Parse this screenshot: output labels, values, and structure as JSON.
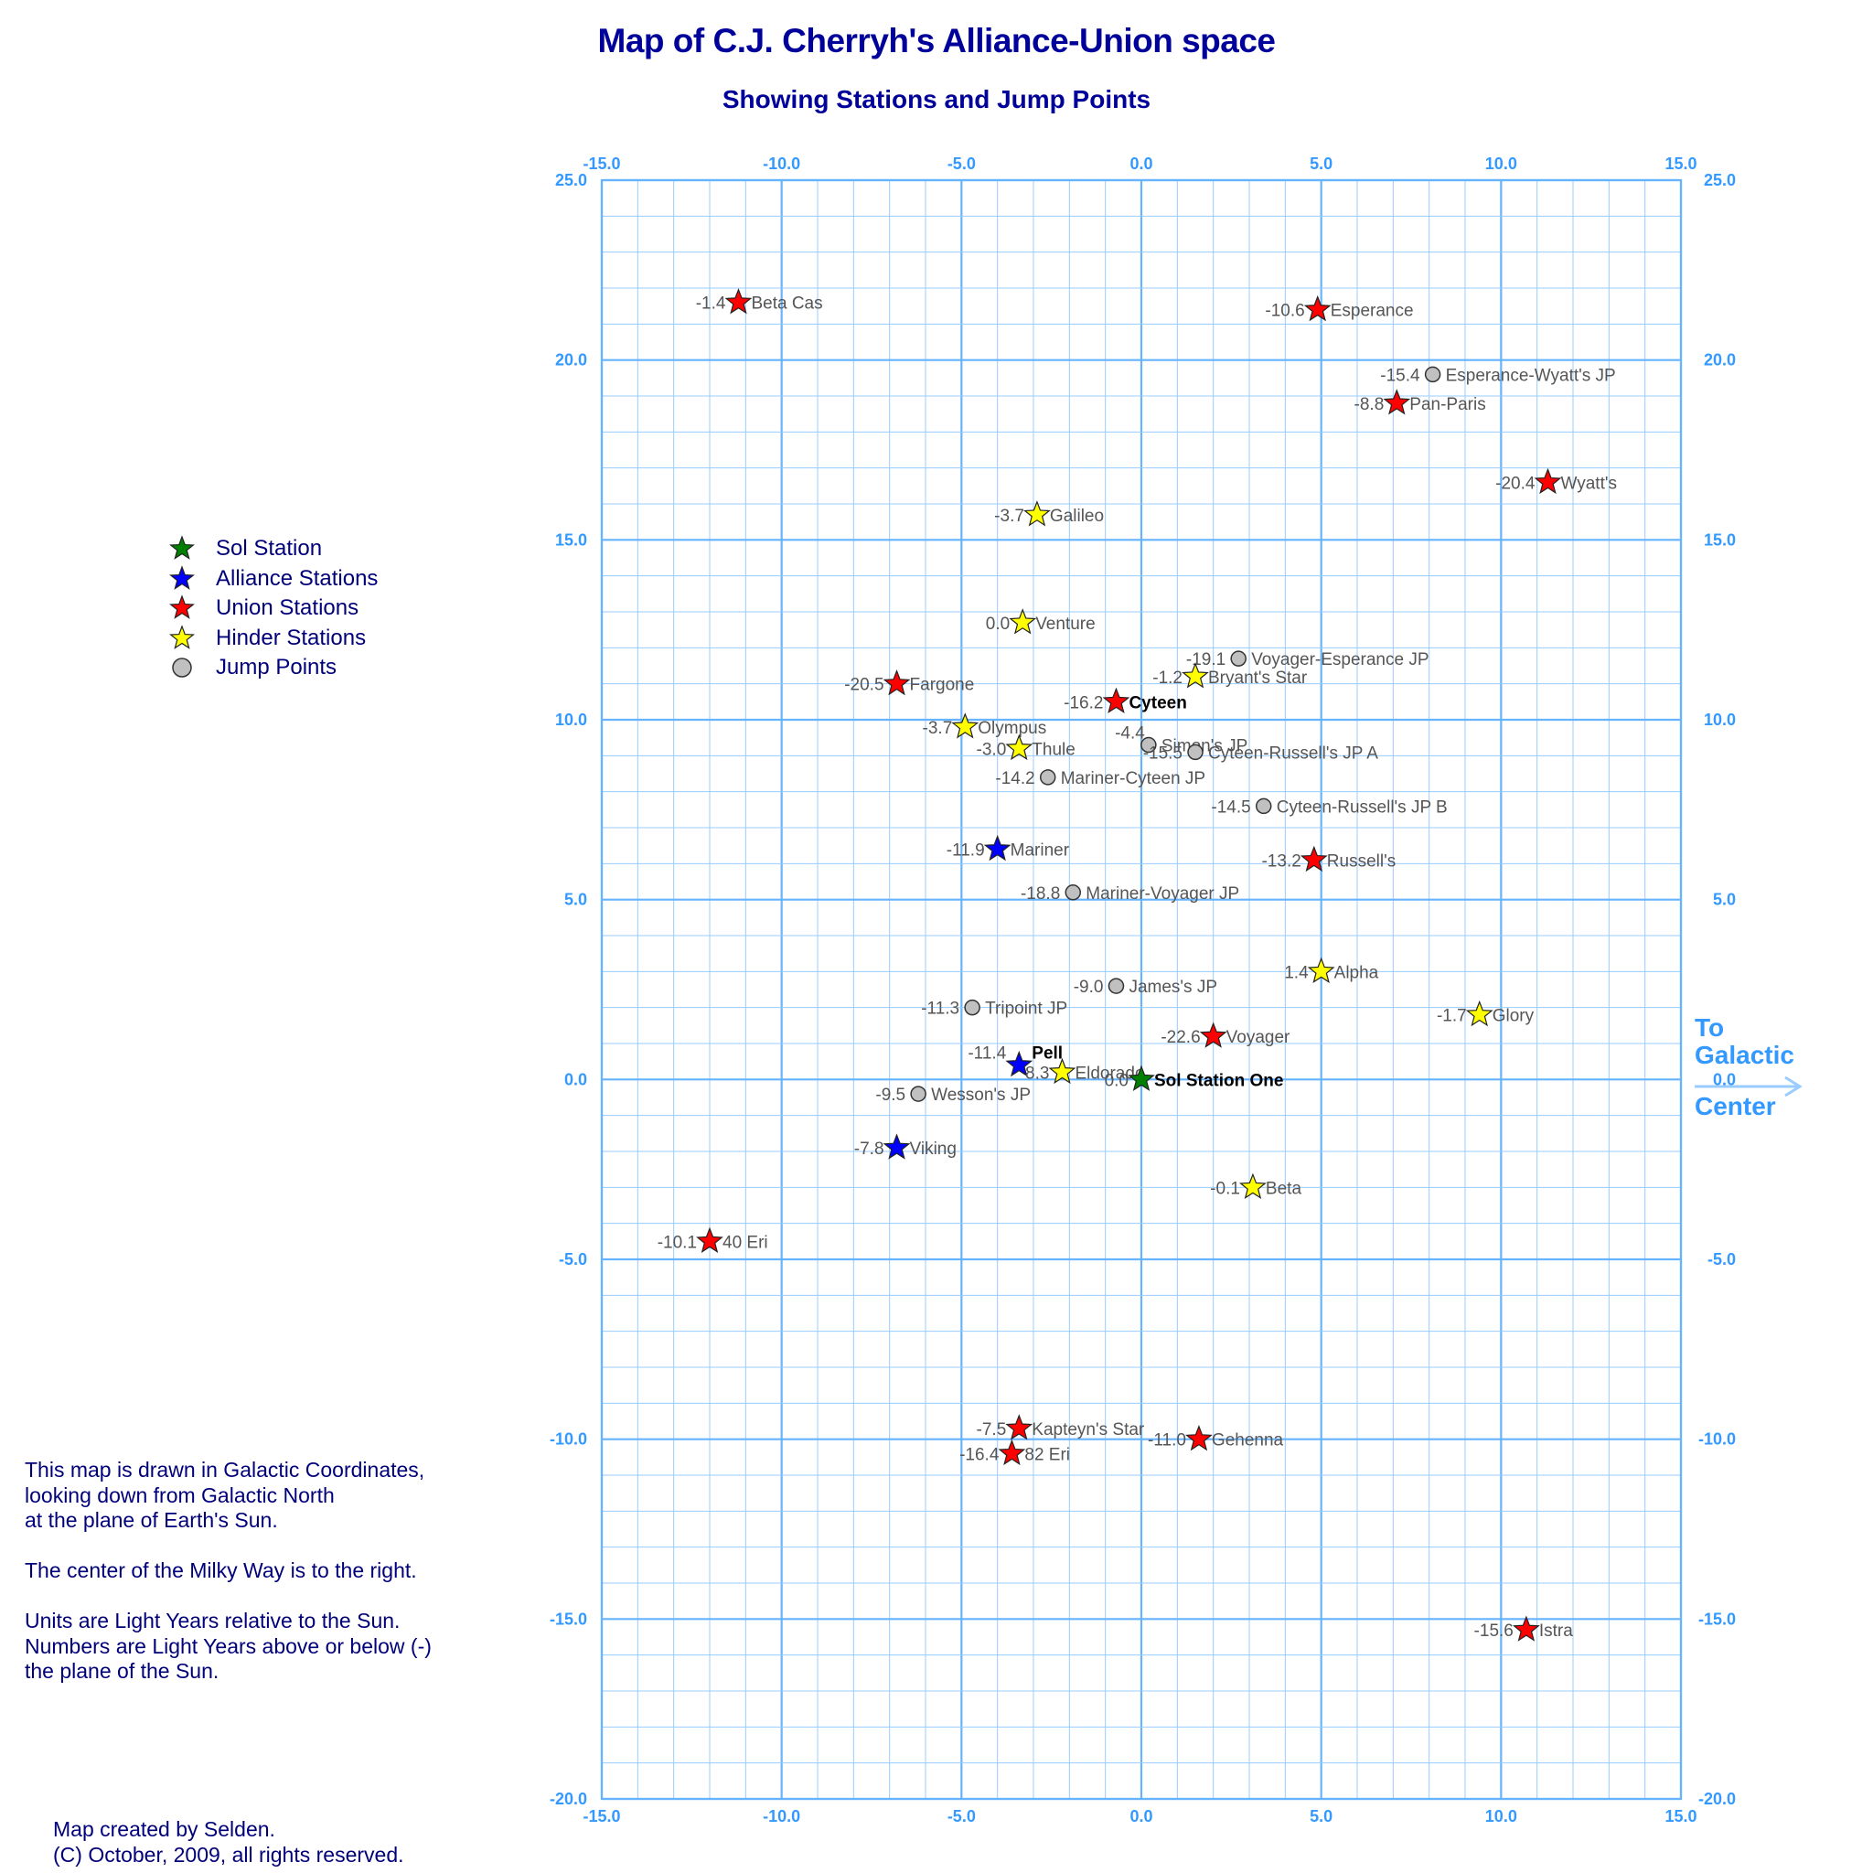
{
  "title": "Map of C.J. Cherryh's Alliance-Union space",
  "subtitle": "Showing Stations and Jump Points",
  "legend": [
    {
      "key": "sol",
      "label": "Sol Station",
      "color": "#008000",
      "shape": "star"
    },
    {
      "key": "alliance",
      "label": "Alliance Stations",
      "color": "#0000ff",
      "shape": "star"
    },
    {
      "key": "union",
      "label": "Union Stations",
      "color": "#ff0000",
      "shape": "star"
    },
    {
      "key": "hinder",
      "label": "Hinder Stations",
      "color": "#ffff00",
      "shape": "star"
    },
    {
      "key": "jump",
      "label": "Jump Points",
      "color": "#c0c0c0",
      "shape": "circle"
    }
  ],
  "notes": [
    "This map is drawn in Galactic Coordinates,",
    "looking down from Galactic North",
    "at the plane of Earth's Sun.",
    "",
    "The center of the Milky Way is to the right.",
    "",
    "Units are Light Years relative to the Sun.",
    "Numbers are Light Years above or below (-)",
    "the plane of the Sun."
  ],
  "credit": [
    "Map created by Selden.",
    "(C) October, 2009, all rights reserved."
  ],
  "galactic_center": {
    "line1": "To",
    "line2": "Galactic",
    "line3": "Center",
    "icon": "arrow-right-icon"
  },
  "axes": {
    "xlim": [
      -15,
      15
    ],
    "ylim": [
      -20,
      25
    ],
    "x_ticks": [
      "-15.0",
      "-10.0",
      "-5.0",
      "0.0",
      "5.0",
      "10.0",
      "15.0"
    ],
    "y_ticks": [
      "25.0",
      "20.0",
      "15.0",
      "10.0",
      "5.0",
      "0.0",
      "-5.0",
      "-10.0",
      "-15.0",
      "-20.0"
    ],
    "major_grid": 5,
    "minor_grid": 1,
    "grid_color": "#99ccff",
    "major_grid_color": "#66b3ff",
    "tick_color": "#3399ff"
  },
  "chart_data": {
    "type": "scatter",
    "points": [
      {
        "name": "Beta Cas",
        "type": "union",
        "x": -11.2,
        "y": 21.6,
        "z": "-1.4"
      },
      {
        "name": "Esperance",
        "type": "union",
        "x": 4.9,
        "y": 21.4,
        "z": "-10.6"
      },
      {
        "name": "Esperance-Wyatt's JP",
        "type": "jump",
        "x": 8.1,
        "y": 19.6,
        "z": "-15.4"
      },
      {
        "name": "Pan-Paris",
        "type": "union",
        "x": 7.1,
        "y": 18.8,
        "z": "-8.8"
      },
      {
        "name": "Wyatt's",
        "type": "union",
        "x": 11.3,
        "y": 16.6,
        "z": "-20.4"
      },
      {
        "name": "Galileo",
        "type": "hinder",
        "x": -2.9,
        "y": 15.7,
        "z": "-3.7"
      },
      {
        "name": "Venture",
        "type": "hinder",
        "x": -3.3,
        "y": 12.7,
        "z": "0.0"
      },
      {
        "name": "Voyager-Esperance JP",
        "type": "jump",
        "x": 2.7,
        "y": 11.7,
        "z": "-19.1"
      },
      {
        "name": "Bryant's Star",
        "type": "hinder",
        "x": 1.5,
        "y": 11.2,
        "z": "-1.2"
      },
      {
        "name": "Fargone",
        "type": "union",
        "x": -6.8,
        "y": 11.0,
        "z": "-20.5"
      },
      {
        "name": "Cyteen",
        "type": "union",
        "x": -0.7,
        "y": 10.5,
        "z": "-16.2",
        "bold": true
      },
      {
        "name": "Olympus",
        "type": "hinder",
        "x": -4.9,
        "y": 9.8,
        "z": "-3.7"
      },
      {
        "name": "Simon's JP",
        "type": "jump",
        "x": 0.2,
        "y": 9.3,
        "z": "-4.4",
        "zdx": 10,
        "zdy": -14
      },
      {
        "name": "Thule",
        "type": "hinder",
        "x": -3.4,
        "y": 9.2,
        "z": "-3.0"
      },
      {
        "name": "Cyteen-Russell's JP A",
        "type": "jump",
        "x": 1.5,
        "y": 9.1,
        "z": "-15.5"
      },
      {
        "name": "Mariner-Cyteen JP",
        "type": "jump",
        "x": -2.6,
        "y": 8.4,
        "z": "-14.2"
      },
      {
        "name": "Cyteen-Russell's JP B",
        "type": "jump",
        "x": 3.4,
        "y": 7.6,
        "z": "-14.5"
      },
      {
        "name": "Mariner",
        "type": "alliance",
        "x": -4.0,
        "y": 6.4,
        "z": "-11.9"
      },
      {
        "name": "Russell's",
        "type": "union",
        "x": 4.8,
        "y": 6.1,
        "z": "-13.2"
      },
      {
        "name": "Mariner-Voyager JP",
        "type": "jump",
        "x": -1.9,
        "y": 5.2,
        "z": "-18.8"
      },
      {
        "name": "Alpha",
        "type": "hinder",
        "x": 5.0,
        "y": 3.0,
        "z": "1.4"
      },
      {
        "name": "James's JP",
        "type": "jump",
        "x": -0.7,
        "y": 2.6,
        "z": "-9.0"
      },
      {
        "name": "Tripoint JP",
        "type": "jump",
        "x": -4.7,
        "y": 2.0,
        "z": "-11.3"
      },
      {
        "name": "Glory",
        "type": "hinder",
        "x": 9.4,
        "y": 1.8,
        "z": "-1.7"
      },
      {
        "name": "Voyager",
        "type": "union",
        "x": 2.0,
        "y": 1.2,
        "z": "-22.6"
      },
      {
        "name": "Pell",
        "type": "alliance",
        "x": -3.4,
        "y": 0.4,
        "z": "-11.4",
        "bold": true,
        "ldy": -14,
        "zdy": -14
      },
      {
        "name": "Eldorado",
        "type": "hinder",
        "x": -2.2,
        "y": 0.2,
        "z": "8.3"
      },
      {
        "name": "Sol Station One",
        "type": "sol",
        "x": 0.0,
        "y": 0.0,
        "z": "0.0",
        "bold": true
      },
      {
        "name": "Wesson's JP",
        "type": "jump",
        "x": -6.2,
        "y": -0.4,
        "z": "-9.5"
      },
      {
        "name": "Viking",
        "type": "alliance",
        "x": -6.8,
        "y": -1.9,
        "z": "-7.8"
      },
      {
        "name": "Beta",
        "type": "hinder",
        "x": 3.1,
        "y": -3.0,
        "z": "-0.1"
      },
      {
        "name": "40 Eri",
        "type": "union",
        "x": -12.0,
        "y": -4.5,
        "z": "-10.1"
      },
      {
        "name": "Kapteyn's Star",
        "type": "union",
        "x": -3.4,
        "y": -9.7,
        "z": "-7.5"
      },
      {
        "name": "Gehenna",
        "type": "union",
        "x": 1.6,
        "y": -10.0,
        "z": "-11.0"
      },
      {
        "name": "82 Eri",
        "type": "union",
        "x": -3.6,
        "y": -10.4,
        "z": "-16.4"
      },
      {
        "name": "Istra",
        "type": "union",
        "x": 10.7,
        "y": -15.3,
        "z": "-15.6"
      }
    ]
  }
}
